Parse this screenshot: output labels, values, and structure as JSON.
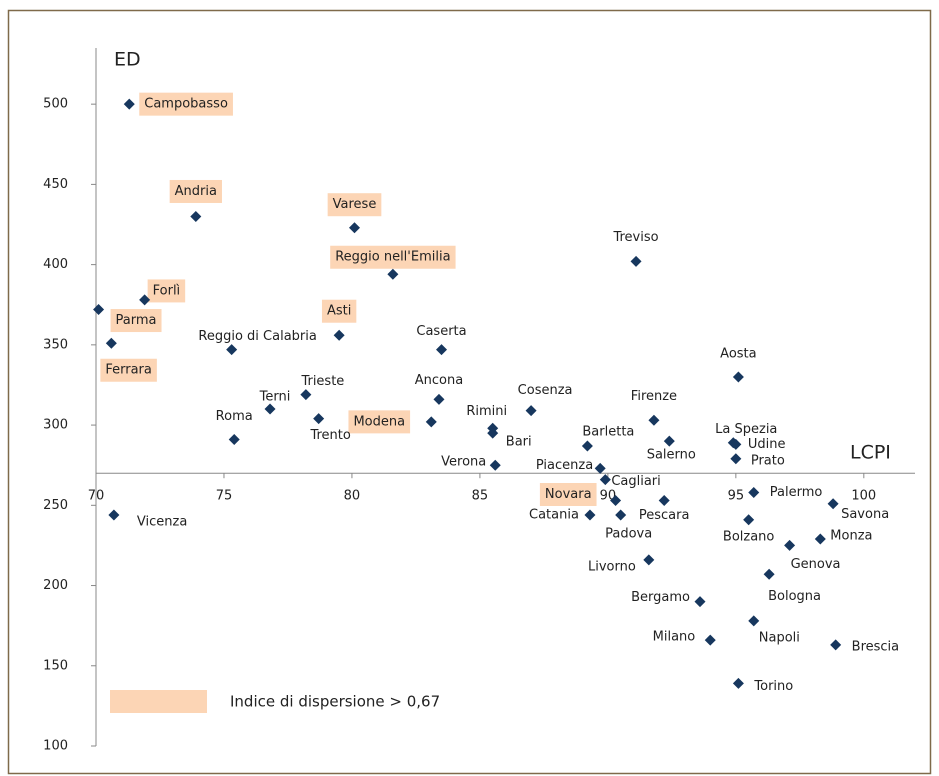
{
  "chart_data": {
    "type": "scatter",
    "x_label": "LCPI",
    "y_label": "ED",
    "xlim": [
      70,
      102
    ],
    "ylim": [
      100,
      535
    ],
    "x_axis_at": 270,
    "xticks": [
      70,
      75,
      80,
      85,
      90,
      95,
      100
    ],
    "yticks": [
      100,
      150,
      200,
      250,
      300,
      350,
      400,
      450,
      500
    ],
    "color": "#17375e",
    "highlight_color": "#fcd5b5",
    "legend": "Indice di dispersione > 0,67",
    "points": [
      {
        "name": "Campobasso",
        "x": 71.3,
        "y": 500,
        "highlight": true
      },
      {
        "name": "Andria",
        "x": 73.9,
        "y": 430,
        "highlight": true
      },
      {
        "name": "Varese",
        "x": 80.1,
        "y": 423,
        "highlight": true
      },
      {
        "name": "Reggio nell'Emilia",
        "x": 81.6,
        "y": 394,
        "highlight": true
      },
      {
        "name": "Treviso",
        "x": 91.1,
        "y": 402,
        "highlight": false
      },
      {
        "name": "Forlì",
        "x": 71.9,
        "y": 378,
        "highlight": true
      },
      {
        "name": "Parma",
        "x": 70.1,
        "y": 372,
        "highlight": true
      },
      {
        "name": "Ferrara",
        "x": 70.6,
        "y": 351,
        "highlight": true
      },
      {
        "name": "Asti",
        "x": 79.5,
        "y": 356,
        "highlight": true
      },
      {
        "name": "Reggio di Calabria",
        "x": 75.3,
        "y": 347,
        "highlight": false
      },
      {
        "name": "Caserta",
        "x": 83.5,
        "y": 347,
        "highlight": false
      },
      {
        "name": "Aosta",
        "x": 95.1,
        "y": 330,
        "highlight": false
      },
      {
        "name": "Trieste",
        "x": 78.2,
        "y": 319,
        "highlight": false
      },
      {
        "name": "Terni",
        "x": 76.8,
        "y": 310,
        "highlight": false
      },
      {
        "name": "Ancona",
        "x": 83.4,
        "y": 316,
        "highlight": false
      },
      {
        "name": "Cosenza",
        "x": 87.0,
        "y": 309,
        "highlight": false
      },
      {
        "name": "Roma",
        "x": 75.4,
        "y": 291,
        "highlight": false
      },
      {
        "name": "Trento",
        "x": 78.7,
        "y": 304,
        "highlight": false
      },
      {
        "name": "Modena",
        "x": 83.1,
        "y": 302,
        "highlight": true
      },
      {
        "name": "Rimini",
        "x": 85.5,
        "y": 298,
        "highlight": false
      },
      {
        "name": "Bari",
        "x": 85.5,
        "y": 295,
        "highlight": false
      },
      {
        "name": "Firenze",
        "x": 91.8,
        "y": 303,
        "highlight": false
      },
      {
        "name": "Barletta",
        "x": 89.2,
        "y": 287,
        "highlight": false
      },
      {
        "name": "Salerno",
        "x": 92.4,
        "y": 290,
        "highlight": false
      },
      {
        "name": "La Spezia",
        "x": 94.9,
        "y": 289,
        "highlight": false
      },
      {
        "name": "Udine",
        "x": 95.0,
        "y": 288,
        "highlight": false
      },
      {
        "name": "Prato",
        "x": 95.0,
        "y": 279,
        "highlight": false
      },
      {
        "name": "Verona",
        "x": 85.6,
        "y": 275,
        "highlight": false
      },
      {
        "name": "Piacenza",
        "x": 89.7,
        "y": 273,
        "highlight": false
      },
      {
        "name": "Cagliari",
        "x": 89.9,
        "y": 266,
        "highlight": false
      },
      {
        "name": "Novara",
        "x": 90.3,
        "y": 253,
        "highlight": true
      },
      {
        "name": "Pescara",
        "x": 92.2,
        "y": 253,
        "highlight": false
      },
      {
        "name": "Palermo",
        "x": 95.7,
        "y": 258,
        "highlight": false
      },
      {
        "name": "Savona",
        "x": 98.8,
        "y": 251,
        "highlight": false
      },
      {
        "name": "Vicenza",
        "x": 70.7,
        "y": 244,
        "highlight": false
      },
      {
        "name": "Catania",
        "x": 89.3,
        "y": 244,
        "highlight": false
      },
      {
        "name": "Padova",
        "x": 90.5,
        "y": 244,
        "highlight": false
      },
      {
        "name": "Bolzano",
        "x": 95.5,
        "y": 241,
        "highlight": false
      },
      {
        "name": "Genova",
        "x": 97.1,
        "y": 225,
        "highlight": false
      },
      {
        "name": "Monza",
        "x": 98.3,
        "y": 229,
        "highlight": false
      },
      {
        "name": "Livorno",
        "x": 91.6,
        "y": 216,
        "highlight": false
      },
      {
        "name": "Bologna",
        "x": 96.3,
        "y": 207,
        "highlight": false
      },
      {
        "name": "Bergamo",
        "x": 93.6,
        "y": 190,
        "highlight": false
      },
      {
        "name": "Napoli",
        "x": 95.7,
        "y": 178,
        "highlight": false
      },
      {
        "name": "Milano",
        "x": 94.0,
        "y": 166,
        "highlight": false
      },
      {
        "name": "Brescia",
        "x": 98.9,
        "y": 163,
        "highlight": false
      },
      {
        "name": "Torino",
        "x": 95.1,
        "y": 139,
        "highlight": false
      }
    ]
  }
}
